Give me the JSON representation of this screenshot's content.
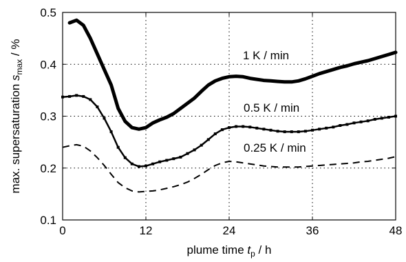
{
  "chart_data": {
    "type": "line",
    "xlabel_text": "plume time",
    "xlabel_symbol": "t",
    "xlabel_symbol_sub": "p",
    "xlabel_unit": "/ h",
    "ylabel_text": "max. supersaturation",
    "ylabel_symbol": "s",
    "ylabel_symbol_sub": "max",
    "ylabel_unit": "/ %",
    "xlim": [
      0,
      48
    ],
    "ylim": [
      0.1,
      0.5
    ],
    "xticks": [
      0,
      12,
      24,
      36,
      48
    ],
    "yticks": [
      0.1,
      0.2,
      0.3,
      0.4,
      0.5
    ],
    "xtick_labels": [
      "0",
      "12",
      "24",
      "36",
      "48"
    ],
    "ytick_labels": [
      "0.1",
      "0.2",
      "0.3",
      "0.4",
      "0.5"
    ],
    "grid": true,
    "series": [
      {
        "name": "1 K / min",
        "style": "thick-solid",
        "color": "#000000",
        "x": [
          1,
          2,
          3,
          4,
          5,
          6,
          7,
          8,
          9,
          10,
          11,
          12,
          13,
          14,
          15,
          16,
          17,
          18,
          19,
          20,
          21,
          22,
          23,
          24,
          25,
          26,
          27,
          28,
          29,
          30,
          31,
          32,
          33,
          34,
          35,
          36,
          37,
          38,
          39,
          40,
          41,
          42,
          43,
          44,
          45,
          46,
          47,
          48
        ],
        "values": [
          0.48,
          0.485,
          0.475,
          0.45,
          0.42,
          0.39,
          0.36,
          0.315,
          0.29,
          0.278,
          0.275,
          0.278,
          0.287,
          0.293,
          0.298,
          0.305,
          0.315,
          0.325,
          0.335,
          0.348,
          0.36,
          0.368,
          0.373,
          0.376,
          0.377,
          0.376,
          0.373,
          0.371,
          0.369,
          0.368,
          0.367,
          0.366,
          0.366,
          0.368,
          0.372,
          0.377,
          0.382,
          0.386,
          0.39,
          0.394,
          0.397,
          0.401,
          0.404,
          0.407,
          0.411,
          0.415,
          0.419,
          0.423
        ]
      },
      {
        "name": "0.5 K / min",
        "style": "solid-marked",
        "color": "#000000",
        "x": [
          0,
          1,
          2,
          3,
          4,
          5,
          6,
          7,
          8,
          9,
          10,
          11,
          12,
          13,
          14,
          15,
          16,
          17,
          18,
          19,
          20,
          21,
          22,
          23,
          24,
          25,
          26,
          27,
          28,
          29,
          30,
          31,
          32,
          33,
          34,
          35,
          36,
          37,
          38,
          39,
          40,
          41,
          42,
          43,
          44,
          45,
          46,
          47,
          48
        ],
        "values": [
          0.337,
          0.338,
          0.34,
          0.338,
          0.332,
          0.318,
          0.296,
          0.27,
          0.24,
          0.22,
          0.208,
          0.203,
          0.204,
          0.208,
          0.212,
          0.215,
          0.218,
          0.221,
          0.228,
          0.235,
          0.244,
          0.255,
          0.266,
          0.274,
          0.278,
          0.28,
          0.28,
          0.279,
          0.277,
          0.275,
          0.273,
          0.271,
          0.27,
          0.27,
          0.27,
          0.271,
          0.273,
          0.275,
          0.277,
          0.279,
          0.282,
          0.284,
          0.287,
          0.289,
          0.291,
          0.294,
          0.296,
          0.298,
          0.3
        ]
      },
      {
        "name": "0.25 K / min",
        "style": "dashed",
        "color": "#000000",
        "x": [
          0,
          1,
          2,
          3,
          4,
          5,
          6,
          7,
          8,
          9,
          10,
          11,
          12,
          13,
          14,
          15,
          16,
          17,
          18,
          19,
          20,
          21,
          22,
          23,
          24,
          25,
          26,
          27,
          28,
          29,
          30,
          31,
          32,
          33,
          34,
          35,
          36,
          37,
          38,
          39,
          40,
          41,
          42,
          43,
          44,
          45,
          46,
          47,
          48
        ],
        "values": [
          0.24,
          0.243,
          0.245,
          0.242,
          0.233,
          0.22,
          0.205,
          0.188,
          0.172,
          0.162,
          0.156,
          0.154,
          0.155,
          0.156,
          0.158,
          0.161,
          0.164,
          0.168,
          0.173,
          0.18,
          0.188,
          0.197,
          0.205,
          0.21,
          0.213,
          0.212,
          0.21,
          0.208,
          0.206,
          0.204,
          0.203,
          0.202,
          0.202,
          0.202,
          0.202,
          0.203,
          0.204,
          0.205,
          0.206,
          0.207,
          0.208,
          0.209,
          0.21,
          0.212,
          0.213,
          0.215,
          0.217,
          0.219,
          0.222
        ]
      }
    ]
  }
}
